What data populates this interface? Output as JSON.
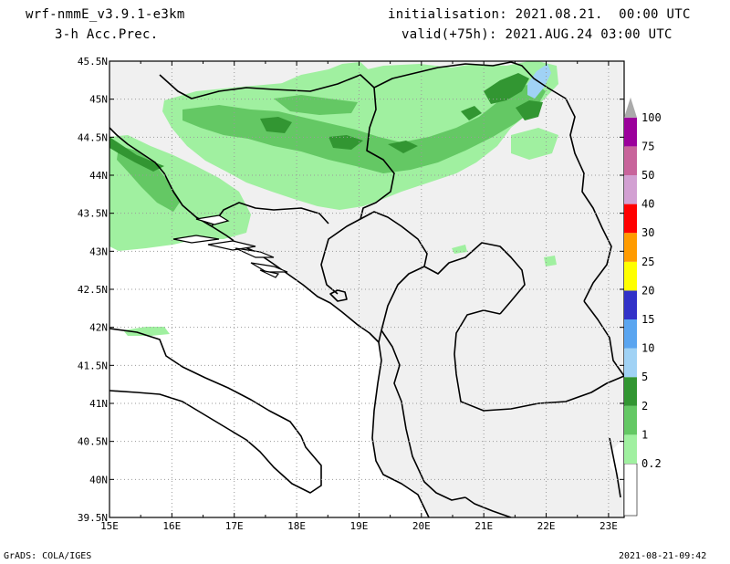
{
  "header": {
    "model": "wrf-nmmE_v3.9.1-e3km",
    "field": "3-h Acc.Prec.",
    "initialisation": "initialisation: 2021.08.21.  00:00 UTC",
    "valid": "valid(+75h): 2021.AUG.24 03:00 UTC"
  },
  "footer": {
    "left": "GrADS: COLA/IGES",
    "right": "2021-08-21-09:42"
  },
  "map": {
    "lon_ticks": [
      "15E",
      "16E",
      "17E",
      "18E",
      "19E",
      "20E",
      "21E",
      "22E",
      "23E"
    ],
    "lat_ticks": [
      "45.5N",
      "45N",
      "44.5N",
      "44N",
      "43.5N",
      "43N",
      "42.5N",
      "42N",
      "41.5N",
      "41N",
      "40.5N",
      "40N",
      "39.5N"
    ],
    "lon_range": [
      15,
      23.25
    ],
    "lat_range": [
      39.5,
      45.5
    ],
    "land_color": "#f0f0f0",
    "sea_color": "#ffffff",
    "grid": true
  },
  "colorbar": {
    "levels": [
      "0.2",
      "1",
      "2",
      "5",
      "10",
      "15",
      "20",
      "25",
      "30",
      "40",
      "50",
      "75",
      "100"
    ],
    "colors": [
      "#a0f0a0",
      "#64c864",
      "#329632",
      "#a0d2f5",
      "#5aa5f0",
      "#3232c8",
      "#ffff00",
      "#ff9b00",
      "#ff0000",
      "#d2a0d2",
      "#c8649b",
      "#9b009b",
      "#aaaaaa"
    ]
  }
}
